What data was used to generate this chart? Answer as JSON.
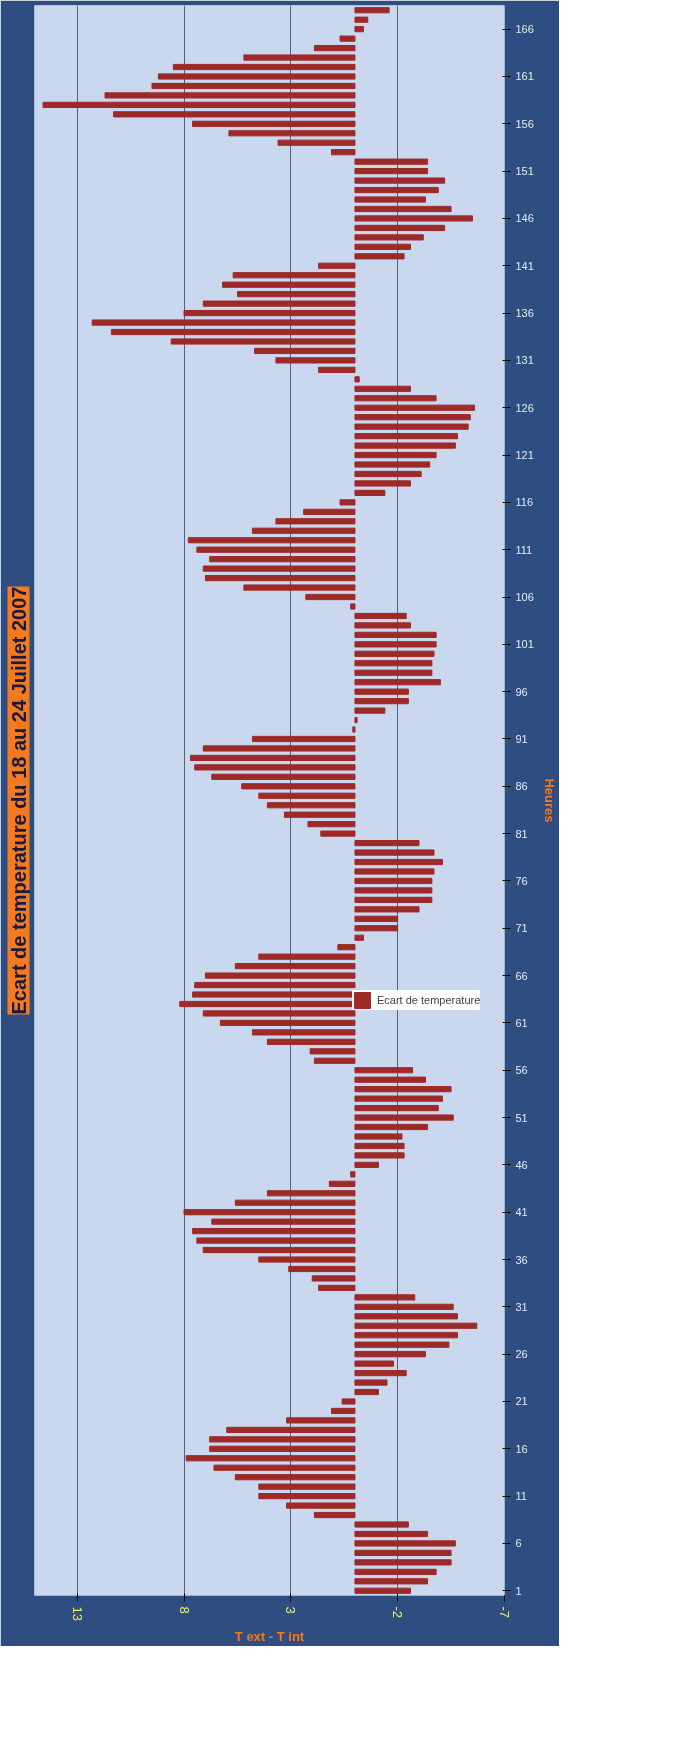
{
  "chart_data": {
    "type": "bar",
    "orientation": "horizontal",
    "title": "Ecart de temperature du 18 au 24 Juillet 2007",
    "xlabel": "T ext - T int",
    "ylabel": "Heures",
    "categories": [
      null,
      null,
      "166",
      null,
      null,
      null,
      null,
      "161",
      null,
      null,
      null,
      null,
      "156",
      null,
      null,
      null,
      null,
      "151",
      null,
      null,
      null,
      null,
      "146",
      null,
      null,
      null,
      null,
      "141",
      null,
      null,
      null,
      null,
      "136",
      null,
      null,
      null,
      null,
      "131",
      null,
      null,
      null,
      null,
      "126",
      null,
      null,
      null,
      null,
      "121",
      null,
      null,
      null,
      null,
      "116",
      null,
      null,
      null,
      null,
      "111",
      null,
      null,
      null,
      null,
      "106",
      null,
      null,
      null,
      null,
      "101",
      null,
      null,
      null,
      null,
      "96",
      null,
      null,
      null,
      null,
      "91",
      null,
      null,
      null,
      null,
      "86",
      null,
      null,
      null,
      null,
      "81",
      null,
      null,
      null,
      null,
      "76",
      null,
      null,
      null,
      null,
      "71",
      null,
      null,
      null,
      null,
      "66",
      null,
      null,
      null,
      null,
      "61",
      null,
      null,
      null,
      null,
      "56",
      null,
      null,
      null,
      null,
      "51",
      null,
      null,
      null,
      null,
      "46",
      null,
      null,
      null,
      null,
      "41",
      null,
      null,
      null,
      null,
      "36",
      null,
      null,
      null,
      null,
      "31",
      null,
      null,
      null,
      null,
      "26",
      null,
      null,
      null,
      null,
      "21",
      null,
      null,
      null,
      null,
      "16",
      null,
      null,
      null,
      null,
      "11",
      null,
      null,
      null,
      null,
      "6",
      null,
      null,
      null,
      null,
      "1"
    ],
    "series": [
      {
        "name": "Ecart de temperature",
        "color": "#9e2a28",
        "values": [
          -1.6,
          -0.6,
          -0.4,
          0.7,
          1.9,
          5.2,
          8.5,
          9.2,
          9.5,
          11.7,
          14.6,
          11.3,
          7.6,
          5.9,
          3.6,
          1.1,
          -3.4,
          -3.4,
          -4.2,
          -3.9,
          -3.3,
          -4.5,
          -5.5,
          -4.2,
          -3.2,
          -2.6,
          -2.3,
          1.7,
          5.7,
          6.2,
          5.5,
          7.1,
          8.0,
          12.3,
          11.4,
          8.6,
          4.7,
          3.7,
          1.7,
          -0.2,
          -2.6,
          -3.8,
          -5.6,
          -5.4,
          -5.3,
          -4.8,
          -4.7,
          -3.8,
          -3.5,
          -3.1,
          -2.6,
          -1.4,
          0.7,
          2.4,
          3.7,
          4.8,
          7.8,
          7.4,
          6.8,
          7.1,
          7.0,
          5.2,
          2.3,
          0.2,
          -2.4,
          -2.6,
          -3.8,
          -3.8,
          -3.7,
          -3.6,
          -3.6,
          -4.0,
          -2.5,
          -2.5,
          -1.4,
          -0.1,
          0.1,
          4.8,
          7.1,
          7.7,
          7.5,
          6.7,
          5.3,
          4.5,
          4.1,
          3.3,
          2.2,
          1.6,
          -3.0,
          -3.7,
          -4.1,
          -3.7,
          -3.6,
          -3.6,
          -3.6,
          -3.0,
          -2.0,
          -2.0,
          -0.4,
          0.8,
          4.5,
          5.6,
          7.0,
          7.5,
          7.6,
          8.2,
          7.1,
          6.3,
          4.8,
          4.1,
          2.1,
          1.9,
          -2.7,
          -3.3,
          -4.5,
          -4.1,
          -3.9,
          -4.6,
          -3.4,
          -2.2,
          -2.3,
          -2.3,
          -1.1,
          0.2,
          1.2,
          4.1,
          5.6,
          8.0,
          6.7,
          7.6,
          7.4,
          7.1,
          4.5,
          3.1,
          2.0,
          1.7,
          -2.8,
          -4.6,
          -4.8,
          -5.7,
          -4.8,
          -4.4,
          -3.3,
          -1.8,
          -2.4,
          -1.5,
          -1.1,
          0.6,
          1.1,
          3.2,
          6.0,
          6.8,
          6.8,
          7.9,
          6.6,
          5.6,
          4.5,
          4.5,
          3.2,
          1.9,
          -2.5,
          -3.4,
          -4.7,
          -4.5,
          -4.5,
          -3.8,
          -3.4,
          -2.6
        ]
      }
    ],
    "xlim": [
      15,
      -7
    ],
    "xticks": [
      13,
      8,
      3,
      -2,
      -7
    ],
    "grid": "x",
    "legend": "right"
  }
}
